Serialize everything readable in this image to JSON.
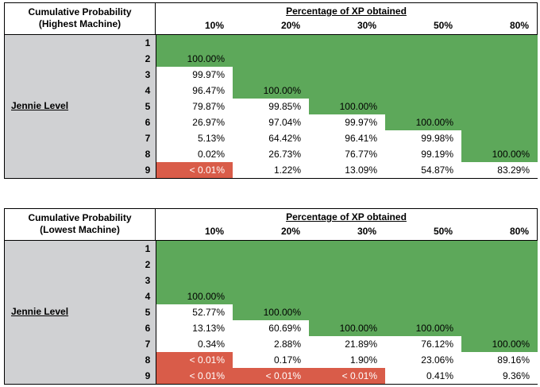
{
  "colors": {
    "green": "#5da85a",
    "red": "#d95c49",
    "gray": "#d0d1d3"
  },
  "tables": [
    {
      "corner_line1": "Cumulative Probability",
      "corner_line2": "(Highest Machine)",
      "header": "Percentage of XP obtained",
      "columns": [
        "10%",
        "20%",
        "30%",
        "50%",
        "80%"
      ],
      "row_label": "Jennie Level",
      "rows": [
        {
          "level": "1",
          "cells": [
            {
              "v": "",
              "c": "g"
            },
            {
              "v": "",
              "c": "g"
            },
            {
              "v": "",
              "c": "g"
            },
            {
              "v": "",
              "c": "g"
            },
            {
              "v": "",
              "c": "g"
            }
          ]
        },
        {
          "level": "2",
          "cells": [
            {
              "v": "100.00%",
              "c": "g"
            },
            {
              "v": "",
              "c": "g"
            },
            {
              "v": "",
              "c": "g"
            },
            {
              "v": "",
              "c": "g"
            },
            {
              "v": "",
              "c": "g"
            }
          ]
        },
        {
          "level": "3",
          "cells": [
            {
              "v": "99.97%",
              "c": "w"
            },
            {
              "v": "",
              "c": "g"
            },
            {
              "v": "",
              "c": "g"
            },
            {
              "v": "",
              "c": "g"
            },
            {
              "v": "",
              "c": "g"
            }
          ]
        },
        {
          "level": "4",
          "cells": [
            {
              "v": "96.47%",
              "c": "w"
            },
            {
              "v": "100.00%",
              "c": "g"
            },
            {
              "v": "",
              "c": "g"
            },
            {
              "v": "",
              "c": "g"
            },
            {
              "v": "",
              "c": "g"
            }
          ]
        },
        {
          "level": "5",
          "cells": [
            {
              "v": "79.87%",
              "c": "w"
            },
            {
              "v": "99.85%",
              "c": "w"
            },
            {
              "v": "100.00%",
              "c": "g"
            },
            {
              "v": "",
              "c": "g"
            },
            {
              "v": "",
              "c": "g"
            }
          ]
        },
        {
          "level": "6",
          "cells": [
            {
              "v": "26.97%",
              "c": "w"
            },
            {
              "v": "97.04%",
              "c": "w"
            },
            {
              "v": "99.97%",
              "c": "w"
            },
            {
              "v": "100.00%",
              "c": "g"
            },
            {
              "v": "",
              "c": "g"
            }
          ]
        },
        {
          "level": "7",
          "cells": [
            {
              "v": "5.13%",
              "c": "w"
            },
            {
              "v": "64.42%",
              "c": "w"
            },
            {
              "v": "96.41%",
              "c": "w"
            },
            {
              "v": "99.98%",
              "c": "w"
            },
            {
              "v": "",
              "c": "g"
            }
          ]
        },
        {
          "level": "8",
          "cells": [
            {
              "v": "0.02%",
              "c": "w"
            },
            {
              "v": "26.73%",
              "c": "w"
            },
            {
              "v": "76.77%",
              "c": "w"
            },
            {
              "v": "99.19%",
              "c": "w"
            },
            {
              "v": "100.00%",
              "c": "g"
            }
          ]
        },
        {
          "level": "9",
          "cells": [
            {
              "v": "< 0.01%",
              "c": "r"
            },
            {
              "v": "1.22%",
              "c": "w"
            },
            {
              "v": "13.09%",
              "c": "w"
            },
            {
              "v": "54.87%",
              "c": "w"
            },
            {
              "v": "83.29%",
              "c": "w"
            }
          ]
        }
      ]
    },
    {
      "corner_line1": "Cumulative Probability",
      "corner_line2": "(Lowest Machine)",
      "header": "Percentage of XP obtained",
      "columns": [
        "10%",
        "20%",
        "30%",
        "50%",
        "80%"
      ],
      "row_label": "Jennie Level",
      "rows": [
        {
          "level": "1",
          "cells": [
            {
              "v": "",
              "c": "g"
            },
            {
              "v": "",
              "c": "g"
            },
            {
              "v": "",
              "c": "g"
            },
            {
              "v": "",
              "c": "g"
            },
            {
              "v": "",
              "c": "g"
            }
          ]
        },
        {
          "level": "2",
          "cells": [
            {
              "v": "",
              "c": "g"
            },
            {
              "v": "",
              "c": "g"
            },
            {
              "v": "",
              "c": "g"
            },
            {
              "v": "",
              "c": "g"
            },
            {
              "v": "",
              "c": "g"
            }
          ]
        },
        {
          "level": "3",
          "cells": [
            {
              "v": "",
              "c": "g"
            },
            {
              "v": "",
              "c": "g"
            },
            {
              "v": "",
              "c": "g"
            },
            {
              "v": "",
              "c": "g"
            },
            {
              "v": "",
              "c": "g"
            }
          ]
        },
        {
          "level": "4",
          "cells": [
            {
              "v": "100.00%",
              "c": "g"
            },
            {
              "v": "",
              "c": "g"
            },
            {
              "v": "",
              "c": "g"
            },
            {
              "v": "",
              "c": "g"
            },
            {
              "v": "",
              "c": "g"
            }
          ]
        },
        {
          "level": "5",
          "cells": [
            {
              "v": "52.77%",
              "c": "w"
            },
            {
              "v": "100.00%",
              "c": "g"
            },
            {
              "v": "",
              "c": "g"
            },
            {
              "v": "",
              "c": "g"
            },
            {
              "v": "",
              "c": "g"
            }
          ]
        },
        {
          "level": "6",
          "cells": [
            {
              "v": "13.13%",
              "c": "w"
            },
            {
              "v": "60.69%",
              "c": "w"
            },
            {
              "v": "100.00%",
              "c": "g"
            },
            {
              "v": "100.00%",
              "c": "g"
            },
            {
              "v": "",
              "c": "g"
            }
          ]
        },
        {
          "level": "7",
          "cells": [
            {
              "v": "0.34%",
              "c": "w"
            },
            {
              "v": "2.88%",
              "c": "w"
            },
            {
              "v": "21.89%",
              "c": "w"
            },
            {
              "v": "76.12%",
              "c": "w"
            },
            {
              "v": "100.00%",
              "c": "g"
            }
          ]
        },
        {
          "level": "8",
          "cells": [
            {
              "v": "< 0.01%",
              "c": "r"
            },
            {
              "v": "0.17%",
              "c": "w"
            },
            {
              "v": "1.90%",
              "c": "w"
            },
            {
              "v": "23.06%",
              "c": "w"
            },
            {
              "v": "89.16%",
              "c": "w"
            }
          ]
        },
        {
          "level": "9",
          "cells": [
            {
              "v": "< 0.01%",
              "c": "r"
            },
            {
              "v": "< 0.01%",
              "c": "r"
            },
            {
              "v": "< 0.01%",
              "c": "r"
            },
            {
              "v": "0.41%",
              "c": "w"
            },
            {
              "v": "9.36%",
              "c": "w"
            }
          ]
        }
      ]
    }
  ]
}
